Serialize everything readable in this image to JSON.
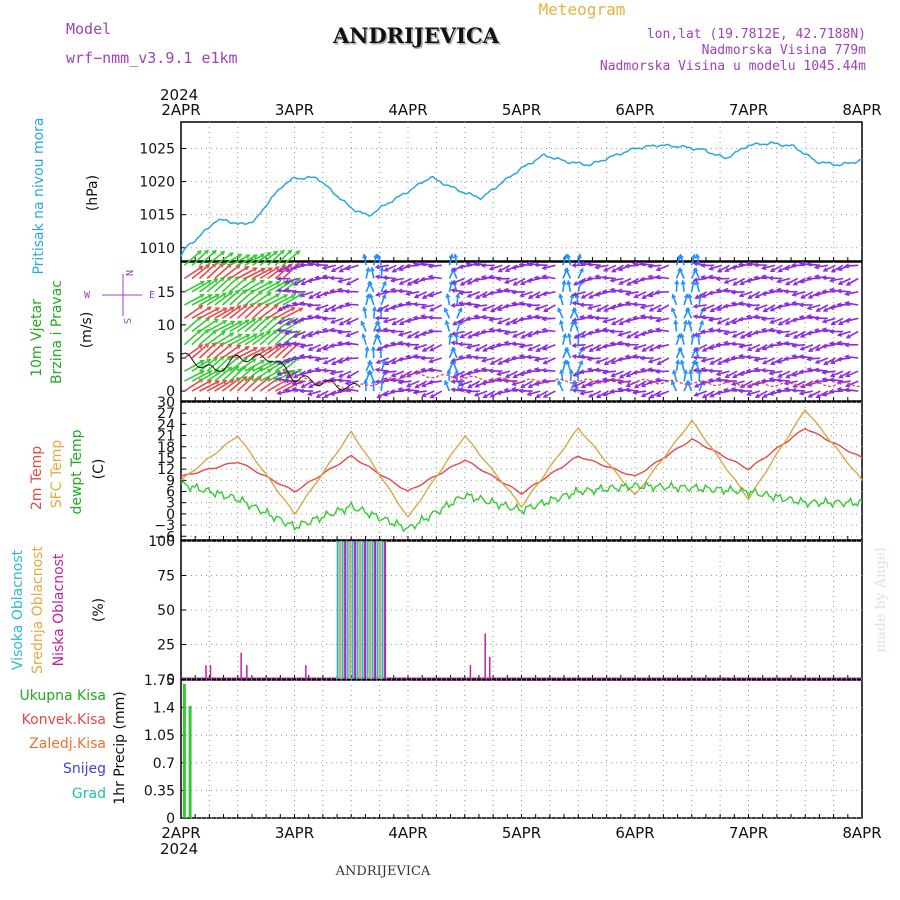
{
  "header": {
    "model_label": "Model",
    "model_name": "wrf−nmm_v3.9.1  e1km",
    "station": "ANDRIJEVICA",
    "product": "Meteogram",
    "lonlat": "lon,lat (19.7812E, 42.7188N)",
    "elevation": "Nadmorska Visina 779m",
    "model_elevation": "Nadmorska Visina u modelu 1045.44m",
    "watermark": "made by Angel",
    "footer_station": "ANDRIJEVICA"
  },
  "colors": {
    "pressure": "#29a8e0",
    "temp2m": "#e84848",
    "sfc": "#d9a84a",
    "dewpt": "#33cc33",
    "high_cloud": "#29b8d8",
    "mid_cloud": "#d9a84a",
    "low_cloud": "#c020a0",
    "total_precip": "#33cc33",
    "wind_purple": "#8a2be2",
    "wind_blue": "#1e90ff",
    "wind_green": "#33cc33",
    "wind_red": "#e84848",
    "label_green": "#22aa22",
    "label_red": "#e84848",
    "label_orange": "#f07030",
    "label_blue": "#4040e0",
    "label_teal": "#20c0b0",
    "label_purple": "#a040c0",
    "label_gold": "#e8b040"
  },
  "time_axis": {
    "top_year": "2024",
    "bottom_year": "2024",
    "days": [
      "2APR",
      "3APR",
      "4APR",
      "5APR",
      "6APR",
      "7APR",
      "8APR"
    ]
  },
  "labels": {
    "pressure_name": "Pritisak na nivou mora",
    "pressure_unit": "(hPa)",
    "wind_name1": "10m Vjetar",
    "wind_name2": "Brzina i Pravac",
    "wind_unit": "(m/s)",
    "compass_n": "N",
    "compass_e": "E",
    "compass_w": "W",
    "compass_s": "S",
    "temp_2m": "2m Temp",
    "temp_sfc": "SFC Temp",
    "temp_dew": "dewpt Temp",
    "temp_unit": "(C)",
    "cloud_high": "Visoka Oblacnost",
    "cloud_mid": "Srednja Oblacnost",
    "cloud_low": "Niska Oblacnost",
    "cloud_unit": "(%)",
    "precip_axis": "1hr Precip (mm)",
    "precip_total": "Ukupna Kisa",
    "precip_conv": "Konvek.Kisa",
    "precip_frz": "Zaledj.Kisa",
    "precip_snow": "Snijeg",
    "precip_hail": "Grad"
  },
  "chart_data": [
    {
      "type": "line",
      "name": "pressure",
      "ylim": [
        1008,
        1029
      ],
      "yticks": [
        "1010",
        "1015",
        "1020",
        "1025"
      ],
      "x": [
        0,
        0.05,
        0.15,
        0.3,
        0.4,
        0.5,
        0.65,
        0.75,
        0.9,
        1.0,
        1.2,
        1.3,
        1.5,
        1.65,
        1.8,
        2.0,
        2.2,
        2.3,
        2.5,
        2.65,
        2.8,
        3.0,
        3.2,
        3.4,
        3.6,
        3.8,
        4.0,
        4.2,
        4.4,
        4.6,
        4.8,
        5.0,
        5.2,
        5.4,
        5.6,
        5.8,
        6.0
      ],
      "y": [
        1008.7,
        1010.2,
        1011.5,
        1014.0,
        1014.2,
        1013.5,
        1014.0,
        1016.5,
        1019.5,
        1020.5,
        1020.6,
        1019.0,
        1016.0,
        1014.8,
        1016.5,
        1018.5,
        1020.7,
        1019.8,
        1018.3,
        1017.5,
        1019.5,
        1022.0,
        1024.0,
        1023.0,
        1022.5,
        1023.8,
        1025.0,
        1025.5,
        1025.3,
        1024.8,
        1023.5,
        1025.5,
        1025.8,
        1025.3,
        1023.0,
        1022.5,
        1023.2
      ]
    },
    {
      "type": "barbs",
      "name": "wind",
      "ylim": [
        -1.5,
        19.5
      ],
      "yticks": [
        "0",
        "5",
        "10",
        "15"
      ],
      "speed_x": [
        0,
        0.3,
        0.5,
        0.8,
        1.0,
        1.5,
        1.8,
        2.0,
        3.0,
        4.0,
        5.0,
        6.0
      ],
      "speed_y": [
        5.5,
        3.0,
        5.0,
        5.0,
        2.0,
        0.5,
        1.5,
        2.5,
        1.5,
        1.5,
        1.0,
        1.0
      ]
    },
    {
      "type": "line",
      "name": "temperature",
      "ylim": [
        -7,
        30
      ],
      "yticks": [
        "−6",
        "−3",
        "0",
        "3",
        "6",
        "9",
        "12",
        "15",
        "18",
        "21",
        "24",
        "27",
        "30"
      ],
      "x": [
        0,
        0.5,
        1,
        1.5,
        2,
        2.5,
        3,
        3.5,
        4,
        4.5,
        5,
        5.5,
        6
      ],
      "series": [
        {
          "name": "2m Temp",
          "color_key": "temp2m",
          "y": [
            10.0,
            14.0,
            6.0,
            15.5,
            6.0,
            14.5,
            5.5,
            15.5,
            10.0,
            20.0,
            12.0,
            23.0,
            15.0
          ]
        },
        {
          "name": "SFC Temp",
          "color_key": "sfc",
          "y": [
            9.0,
            21.0,
            0.0,
            22.0,
            -1.0,
            21.0,
            2.0,
            23.0,
            5.0,
            25.0,
            4.0,
            28.0,
            9.0
          ]
        },
        {
          "name": "dewpt Temp",
          "color_key": "dewpt",
          "y": [
            8.0,
            4.0,
            -3.5,
            2.0,
            -4.0,
            5.0,
            1.0,
            6.0,
            7.5,
            7.0,
            6.0,
            3.0,
            3.0
          ]
        }
      ]
    },
    {
      "type": "bar",
      "name": "cloud",
      "ylim": [
        0,
        100
      ],
      "yticks": [
        "0",
        "25",
        "50",
        "75",
        "100"
      ],
      "low_bars": [
        [
          0.22,
          10
        ],
        [
          0.26,
          10
        ],
        [
          0.53,
          19
        ],
        [
          0.58,
          10
        ],
        [
          1.1,
          10
        ],
        [
          2.55,
          10
        ],
        [
          2.68,
          33
        ],
        [
          2.72,
          16
        ]
      ],
      "block_start": 1.38,
      "block_end": 1.82,
      "block_value": 100
    },
    {
      "type": "bar",
      "name": "precipitation",
      "ylim": [
        0,
        1.75
      ],
      "yticks": [
        "0",
        "0.35",
        "0.7",
        "1.05",
        "1.4",
        "1.75"
      ],
      "bars": [
        [
          0.03,
          1.7
        ],
        [
          0.08,
          1.42
        ]
      ]
    }
  ]
}
